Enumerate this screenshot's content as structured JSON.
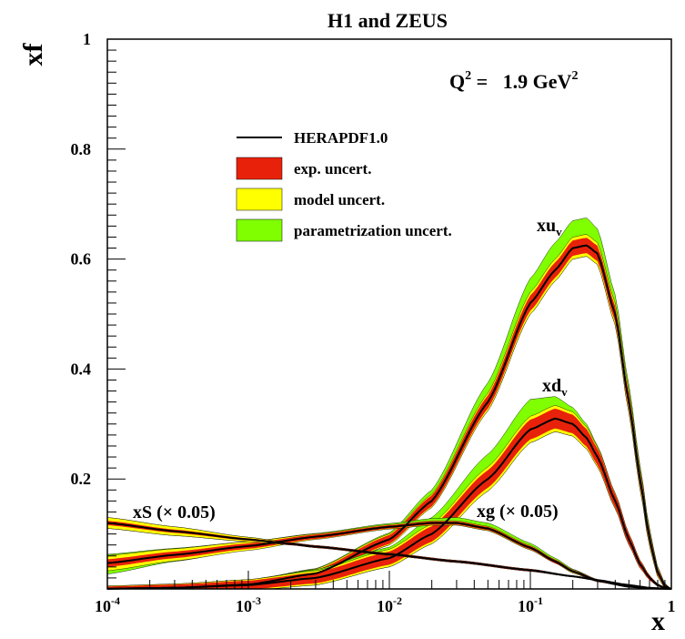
{
  "chart_data": {
    "type": "area",
    "title": "H1 and ZEUS",
    "ylabel": "xf",
    "xlabel": "x",
    "xscale": "log",
    "xlim": [
      0.0001,
      1
    ],
    "ylim": [
      0,
      1
    ],
    "x_ticks": [
      {
        "value": 0.0001,
        "base": "10",
        "exp": "-4"
      },
      {
        "value": 0.001,
        "base": "10",
        "exp": "-3"
      },
      {
        "value": 0.01,
        "base": "10",
        "exp": "-2"
      },
      {
        "value": 0.1,
        "base": "10",
        "exp": "-1"
      },
      {
        "value": 1,
        "base": "1",
        "exp": ""
      }
    ],
    "y_ticks": [
      {
        "value": 0.2,
        "label": "0.2"
      },
      {
        "value": 0.4,
        "label": "0.4"
      },
      {
        "value": 0.6,
        "label": "0.6"
      },
      {
        "value": 0.8,
        "label": "0.8"
      },
      {
        "value": 1.0,
        "label": "1"
      }
    ],
    "q2_annotation": {
      "prefix": "Q",
      "prefix_sup": "2",
      "value": " =   1.9 GeV",
      "value_sup": "2"
    },
    "legend": {
      "placement": "top-left",
      "entries": [
        {
          "label": "HERAPDF1.0",
          "style": "line",
          "color": "#000000"
        },
        {
          "label": "exp. uncert.",
          "style": "box",
          "color": "#e8220a"
        },
        {
          "label": "model uncert.",
          "style": "box",
          "color": "#ffff00"
        },
        {
          "label": "parametrization uncert.",
          "style": "box",
          "color": "#80ff00"
        }
      ]
    },
    "colors": {
      "central": "#000000",
      "exp": "#e8220a",
      "model": "#ffff00",
      "param": "#80ff00"
    },
    "series": [
      {
        "label_base": "xu",
        "label_sub": "v",
        "label_rest": "",
        "x": [
          0.0001,
          0.0003,
          0.001,
          0.003,
          0.01,
          0.02,
          0.05,
          0.1,
          0.15,
          0.2,
          0.25,
          0.3,
          0.4,
          0.5,
          0.6,
          0.7,
          0.8,
          0.9,
          1.0
        ],
        "central": [
          0.0005,
          0.002,
          0.008,
          0.028,
          0.09,
          0.16,
          0.34,
          0.52,
          0.58,
          0.62,
          0.625,
          0.61,
          0.5,
          0.34,
          0.2,
          0.09,
          0.03,
          0.005,
          0.0
        ],
        "exp": [
          0.003,
          0.005,
          0.005,
          0.006,
          0.008,
          0.01,
          0.012,
          0.014,
          0.014,
          0.014,
          0.014,
          0.014,
          0.014,
          0.014,
          0.013,
          0.01,
          0.006,
          0.003,
          0.0
        ],
        "model": [
          0.004,
          0.006,
          0.007,
          0.008,
          0.01,
          0.012,
          0.016,
          0.02,
          0.02,
          0.02,
          0.02,
          0.02,
          0.02,
          0.02,
          0.018,
          0.014,
          0.008,
          0.004,
          0.0
        ],
        "param_hi": [
          0.004,
          0.006,
          0.007,
          0.009,
          0.012,
          0.02,
          0.035,
          0.045,
          0.05,
          0.05,
          0.05,
          0.045,
          0.035,
          0.03,
          0.025,
          0.018,
          0.01,
          0.005,
          0.0
        ],
        "param_lo": [
          0.004,
          0.006,
          0.007,
          0.008,
          0.01,
          0.012,
          0.016,
          0.02,
          0.02,
          0.02,
          0.02,
          0.02,
          0.02,
          0.02,
          0.018,
          0.014,
          0.008,
          0.004,
          0.0
        ]
      },
      {
        "label_base": "xd",
        "label_sub": "v",
        "label_rest": "",
        "x": [
          0.0001,
          0.0003,
          0.001,
          0.003,
          0.01,
          0.02,
          0.05,
          0.1,
          0.15,
          0.2,
          0.25,
          0.3,
          0.4,
          0.5,
          0.6,
          0.7,
          0.8,
          0.9,
          1.0
        ],
        "central": [
          0.0005,
          0.002,
          0.007,
          0.02,
          0.056,
          0.1,
          0.2,
          0.29,
          0.31,
          0.3,
          0.275,
          0.24,
          0.16,
          0.09,
          0.045,
          0.02,
          0.007,
          0.002,
          0.0
        ],
        "exp": [
          0.004,
          0.006,
          0.008,
          0.01,
          0.012,
          0.014,
          0.016,
          0.018,
          0.018,
          0.017,
          0.016,
          0.015,
          0.012,
          0.009,
          0.006,
          0.004,
          0.002,
          0.001,
          0.0
        ],
        "model": [
          0.005,
          0.007,
          0.01,
          0.013,
          0.016,
          0.018,
          0.022,
          0.024,
          0.024,
          0.022,
          0.02,
          0.018,
          0.014,
          0.01,
          0.007,
          0.004,
          0.002,
          0.001,
          0.0
        ],
        "param_hi": [
          0.005,
          0.007,
          0.01,
          0.015,
          0.02,
          0.03,
          0.045,
          0.055,
          0.04,
          0.03,
          0.025,
          0.02,
          0.014,
          0.01,
          0.007,
          0.004,
          0.002,
          0.001,
          0.0
        ],
        "param_lo": [
          0.005,
          0.007,
          0.01,
          0.013,
          0.016,
          0.018,
          0.022,
          0.024,
          0.024,
          0.022,
          0.02,
          0.018,
          0.014,
          0.01,
          0.007,
          0.004,
          0.002,
          0.001,
          0.0
        ]
      },
      {
        "label_base": "xg",
        "label_sub": "",
        "label_rest": " (× 0.05)",
        "x": [
          0.0001,
          0.0003,
          0.001,
          0.003,
          0.01,
          0.02,
          0.03,
          0.05,
          0.1,
          0.15,
          0.2,
          0.3,
          0.5,
          0.7,
          1.0
        ],
        "central": [
          0.047,
          0.062,
          0.078,
          0.095,
          0.113,
          0.12,
          0.12,
          0.11,
          0.075,
          0.05,
          0.032,
          0.015,
          0.004,
          0.001,
          0.0
        ],
        "exp": [
          0.007,
          0.006,
          0.005,
          0.004,
          0.003,
          0.003,
          0.003,
          0.003,
          0.003,
          0.003,
          0.002,
          0.002,
          0.001,
          0.0005,
          0.0
        ],
        "model": [
          0.014,
          0.011,
          0.008,
          0.005,
          0.004,
          0.004,
          0.004,
          0.004,
          0.004,
          0.003,
          0.003,
          0.002,
          0.001,
          0.0005,
          0.0
        ],
        "param_hi": [
          0.016,
          0.012,
          0.008,
          0.006,
          0.006,
          0.008,
          0.01,
          0.01,
          0.008,
          0.006,
          0.004,
          0.002,
          0.001,
          0.0005,
          0.0
        ],
        "param_lo": [
          0.02,
          0.012,
          0.006,
          0.004,
          0.004,
          0.004,
          0.004,
          0.004,
          0.004,
          0.003,
          0.003,
          0.002,
          0.001,
          0.0005,
          0.0
        ]
      },
      {
        "label_base": "xS",
        "label_sub": "",
        "label_rest": " (× 0.05)",
        "x": [
          0.0001,
          0.0003,
          0.001,
          0.002,
          0.003,
          0.01,
          0.03,
          0.1,
          0.2,
          0.3,
          0.5,
          0.7,
          1.0
        ],
        "central": [
          0.12,
          0.105,
          0.09,
          0.082,
          0.077,
          0.063,
          0.05,
          0.034,
          0.023,
          0.016,
          0.007,
          0.002,
          0.0
        ],
        "exp": [
          0.004,
          0.003,
          0.002,
          0.002,
          0.002,
          0.002,
          0.002,
          0.002,
          0.001,
          0.001,
          0.0005,
          0.0003,
          0.0
        ],
        "model": [
          0.01,
          0.008,
          0.004,
          0.002,
          0.002,
          0.002,
          0.002,
          0.002,
          0.001,
          0.001,
          0.0005,
          0.0003,
          0.0
        ],
        "param_hi": [
          0.01,
          0.008,
          0.004,
          0.002,
          0.002,
          0.002,
          0.002,
          0.002,
          0.001,
          0.001,
          0.0005,
          0.0003,
          0.0
        ],
        "param_lo": [
          0.01,
          0.008,
          0.004,
          0.002,
          0.002,
          0.002,
          0.002,
          0.002,
          0.001,
          0.001,
          0.0005,
          0.0003,
          0.0
        ]
      }
    ]
  }
}
